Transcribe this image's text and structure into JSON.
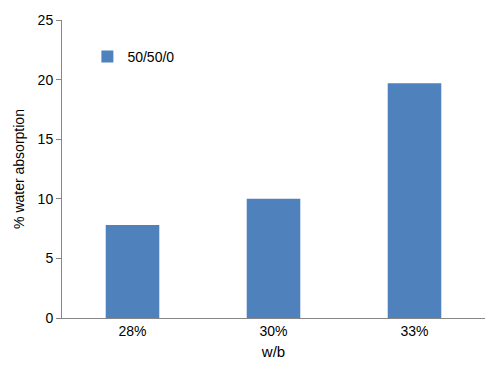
{
  "chart_data": {
    "type": "bar",
    "x_label": "w/b",
    "y_label": "% water absorption",
    "categories": [
      "28%",
      "30%",
      "33%"
    ],
    "series": [
      {
        "name": "50/50/0",
        "color": "#4f81bd",
        "values": [
          7.8,
          10.0,
          19.7
        ]
      }
    ],
    "ylim": [
      0,
      25
    ],
    "yticks": [
      0,
      5,
      10,
      15,
      20,
      25
    ],
    "grid": false,
    "legend": "upper left"
  }
}
